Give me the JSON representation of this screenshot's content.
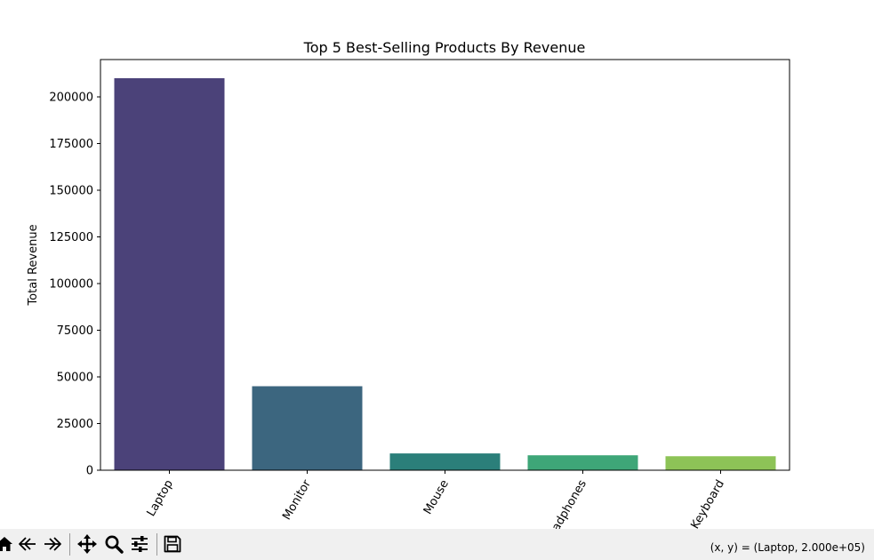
{
  "chart_data": {
    "type": "bar",
    "title": "Top 5 Best-Selling Products By Revenue",
    "xlabel": "",
    "ylabel": "Total Revenue",
    "categories": [
      "Laptop",
      "Monitor",
      "Mouse",
      "Headphones",
      "Keyboard"
    ],
    "values": [
      210000,
      45000,
      9000,
      8000,
      7500
    ],
    "colors": [
      "#4b4279",
      "#3c667f",
      "#2b7f7a",
      "#3ea678",
      "#8dc357"
    ],
    "ylim": [
      0,
      220000
    ],
    "yticks": [
      0,
      25000,
      50000,
      75000,
      100000,
      125000,
      150000,
      175000,
      200000
    ],
    "grid": false,
    "legend": "none"
  },
  "toolbar": {
    "icons": [
      "home-icon",
      "back-icon",
      "forward-icon",
      "pan-icon",
      "zoom-icon",
      "configure-icon",
      "save-icon"
    ],
    "coordinates": "(x, y) = (Laptop, 2.000e+05)"
  }
}
